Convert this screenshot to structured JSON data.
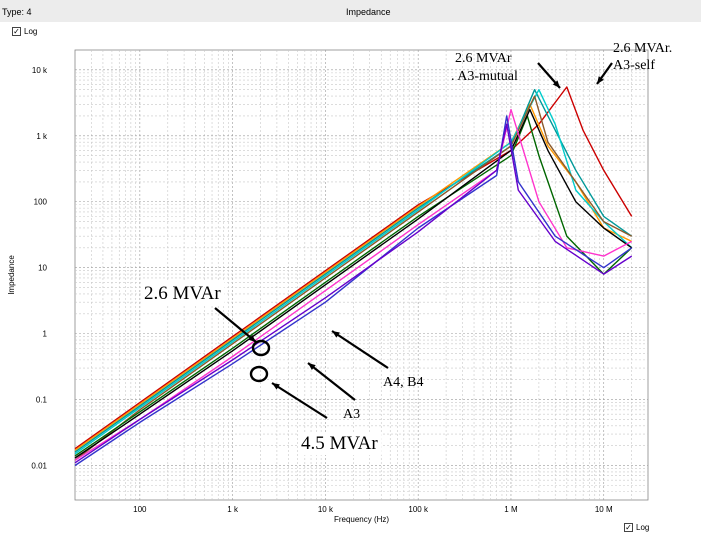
{
  "window": {
    "type_label": "Type: 4",
    "title": "Impedance"
  },
  "y_log_checkbox": {
    "label": "Log",
    "checked": true
  },
  "x_log_checkbox": {
    "label": "Log",
    "checked": true
  },
  "chart_data": {
    "type": "line",
    "title": "",
    "xlabel": "Frequency (Hz)",
    "ylabel": "Impedance",
    "xscale": "log",
    "yscale": "log",
    "xlim": [
      20,
      30000000
    ],
    "ylim": [
      0.003,
      20000
    ],
    "grid": true,
    "x_tick_labels": [
      "100",
      "1 k",
      "10 k",
      "100 k",
      "1 M",
      "10 M"
    ],
    "y_tick_labels": [
      "0.01",
      "0.1",
      "1",
      "10",
      "100",
      "1 k",
      "10 k"
    ],
    "series": [
      {
        "color": "#cc0000",
        "x": [
          20,
          100,
          1000,
          10000,
          100000,
          1000000,
          2000000,
          4000000,
          6000000,
          10000000,
          20000000
        ],
        "y": [
          0.018,
          0.09,
          0.9,
          9,
          90,
          600,
          1500,
          5500,
          1200,
          300,
          60
        ]
      },
      {
        "color": "#ff9900",
        "x": [
          20,
          100,
          1000,
          10000,
          100000,
          1000000,
          1600000,
          2500000,
          5000000,
          10000000,
          20000000
        ],
        "y": [
          0.017,
          0.085,
          0.85,
          8.5,
          85,
          800,
          3000,
          700,
          200,
          40,
          25
        ]
      },
      {
        "color": "#009999",
        "x": [
          20,
          100,
          1000,
          10000,
          100000,
          1000000,
          1800000,
          2500000,
          5000000,
          10000000,
          20000000
        ],
        "y": [
          0.016,
          0.08,
          0.8,
          8,
          80,
          700,
          5000,
          2000,
          300,
          60,
          30
        ]
      },
      {
        "color": "#00cccc",
        "x": [
          20,
          100,
          1000,
          10000,
          100000,
          1000000,
          2000000,
          3000000,
          5000000,
          10000000,
          20000000
        ],
        "y": [
          0.015,
          0.075,
          0.75,
          7.5,
          75,
          800,
          5000,
          1500,
          150,
          50,
          20
        ]
      },
      {
        "color": "#8b5a2b",
        "x": [
          20,
          100,
          1000,
          10000,
          100000,
          1000000,
          1800000,
          2500000,
          5000000,
          10000000,
          20000000
        ],
        "y": [
          0.012,
          0.07,
          0.7,
          7,
          70,
          700,
          4000,
          800,
          200,
          50,
          30
        ]
      },
      {
        "color": "#006600",
        "x": [
          20,
          100,
          1000,
          10000,
          100000,
          1000000,
          1500000,
          2000000,
          4000000,
          10000000,
          20000000
        ],
        "y": [
          0.014,
          0.065,
          0.6,
          6,
          60,
          500,
          2000,
          500,
          30,
          8,
          20
        ]
      },
      {
        "color": "#000000",
        "x": [
          20,
          100,
          1000,
          10000,
          100000,
          1000000,
          1600000,
          2500000,
          5000000,
          10000000,
          20000000
        ],
        "y": [
          0.013,
          0.06,
          0.55,
          5.5,
          55,
          600,
          2500,
          600,
          100,
          40,
          20
        ]
      },
      {
        "color": "#ff33cc",
        "x": [
          20,
          100,
          1000,
          10000,
          100000,
          700000,
          1000000,
          2000000,
          4000000,
          10000000,
          20000000
        ],
        "y": [
          0.012,
          0.05,
          0.45,
          4.5,
          45,
          300,
          2500,
          100,
          20,
          15,
          25
        ]
      },
      {
        "color": "#3333cc",
        "x": [
          20,
          100,
          1000,
          10000,
          100000,
          700000,
          900000,
          1200000,
          3000000,
          10000000,
          20000000
        ],
        "y": [
          0.01,
          0.045,
          0.35,
          3,
          40,
          250,
          2000,
          200,
          30,
          10,
          20
        ]
      },
      {
        "color": "#6600cc",
        "x": [
          20,
          100,
          1000,
          10000,
          100000,
          700000,
          900000,
          1200000,
          3000000,
          10000000,
          20000000
        ],
        "y": [
          0.011,
          0.05,
          0.4,
          3.5,
          35,
          300,
          1500,
          150,
          25,
          8,
          15
        ]
      }
    ],
    "annotations": [
      {
        "text": "2.6 MVAr"
      },
      {
        "text": ". A3-mutual"
      },
      {
        "text": "2.6 MVAr."
      },
      {
        "text": "A3-self"
      },
      {
        "text": "2.6 MVAr"
      },
      {
        "text": "A4, B4"
      },
      {
        "text": "A3"
      },
      {
        "text": "4.5 MVAr"
      }
    ]
  }
}
